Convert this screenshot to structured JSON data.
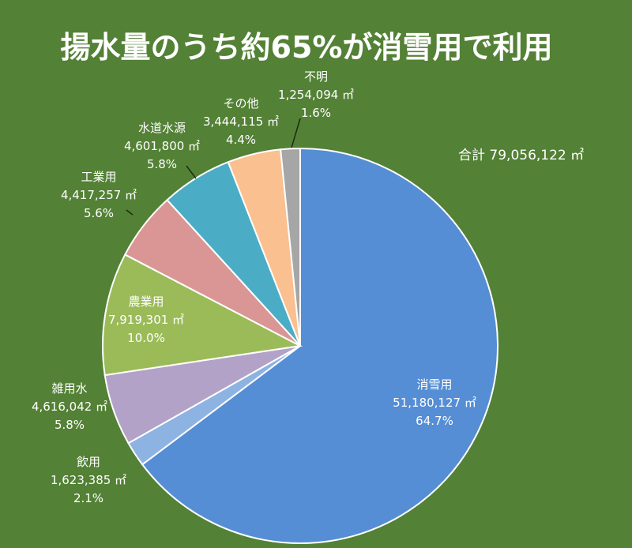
{
  "chart_data": {
    "type": "pie",
    "title": "揚水量のうち約65%が消雪用で利用",
    "total_label": "合計 79,056,122 ㎡",
    "unit": "㎡",
    "slices": [
      {
        "name": "消雪用",
        "value": 51180127,
        "value_label": "51,180,127 ㎡",
        "percent_label": "64.7%",
        "color": "#558ED5"
      },
      {
        "name": "飲用",
        "value": 1623385,
        "value_label": "1,623,385 ㎡",
        "percent_label": "2.1%",
        "color": "#8DB3E2"
      },
      {
        "name": "雑用水",
        "value": 4616042,
        "value_label": "4,616,042 ㎡",
        "percent_label": "5.8%",
        "color": "#B3A2C7"
      },
      {
        "name": "農業用",
        "value": 7919301,
        "value_label": "7,919,301 ㎡",
        "percent_label": "10.0%",
        "color": "#9BBB59"
      },
      {
        "name": "工業用",
        "value": 4417257,
        "value_label": "4,417,257 ㎡",
        "percent_label": "5.6%",
        "color": "#D99694"
      },
      {
        "name": "水道水源",
        "value": 4601800,
        "value_label": "4,601,800 ㎡",
        "percent_label": "5.8%",
        "color": "#4BACC6"
      },
      {
        "name": "その他",
        "value": 3444115,
        "value_label": "3,444,115 ㎡",
        "percent_label": "4.4%",
        "color": "#FAC090"
      },
      {
        "name": "不明",
        "value": 1254094,
        "value_label": "1,254,094 ㎡",
        "percent_label": "1.6%",
        "color": "#A6A6A6"
      }
    ]
  }
}
